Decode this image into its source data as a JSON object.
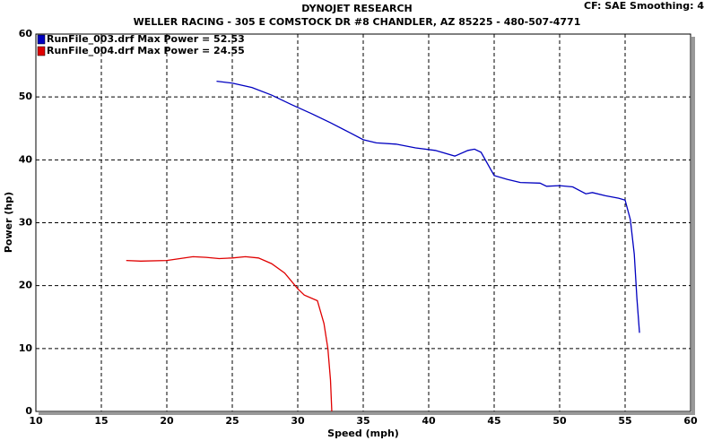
{
  "chart_data": {
    "type": "line",
    "title": "DYNOJET RESEARCH",
    "subtitle": "WELLER RACING - 305 E COMSTOCK DR #8 CHANDLER, AZ 85225 - 480-507-4771",
    "settings_label": "CF: SAE  Smoothing: 4",
    "x_label": "Speed (mph)",
    "y_label": "Power (hp)",
    "xlim": [
      10,
      60
    ],
    "xticks": [
      10,
      15,
      20,
      25,
      30,
      35,
      40,
      45,
      50,
      55,
      60
    ],
    "ylim": [
      0,
      60
    ],
    "yticks": [
      0,
      10,
      20,
      30,
      40,
      50,
      60
    ],
    "grid": true,
    "legend": "top-left",
    "series": [
      {
        "name": "RunFile_003.drf Max Power = 52.53",
        "color": "#0000c0",
        "x": [
          23.8,
          25,
          26.5,
          28,
          29.5,
          31,
          32.5,
          34,
          35,
          36,
          37.5,
          39,
          40.5,
          42,
          43,
          43.5,
          44,
          45,
          46,
          47,
          48.5,
          49,
          50,
          51,
          52,
          52.5,
          53.5,
          54.5,
          55,
          55.4,
          55.7,
          55.9,
          56.1
        ],
        "values": [
          52.5,
          52.2,
          51.5,
          50.3,
          48.8,
          47.4,
          45.9,
          44.3,
          43.2,
          42.7,
          42.5,
          41.9,
          41.5,
          40.6,
          41.5,
          41.7,
          41.2,
          37.5,
          36.9,
          36.4,
          36.3,
          35.8,
          35.9,
          35.7,
          34.6,
          34.8,
          34.3,
          33.9,
          33.6,
          30.5,
          25,
          18,
          12.5
        ]
      },
      {
        "name": "RunFile_004.drf Max Power = 24.55",
        "color": "#e00000",
        "x": [
          16.9,
          18,
          20,
          21,
          22,
          23,
          24,
          25,
          26,
          27,
          28,
          29,
          30,
          30.5,
          31.5,
          32,
          32.3,
          32.5,
          32.6
        ],
        "values": [
          24.0,
          23.9,
          24.0,
          24.3,
          24.6,
          24.5,
          24.3,
          24.4,
          24.6,
          24.4,
          23.5,
          22,
          19.5,
          18.5,
          17.6,
          14,
          10,
          5,
          0
        ]
      }
    ]
  }
}
